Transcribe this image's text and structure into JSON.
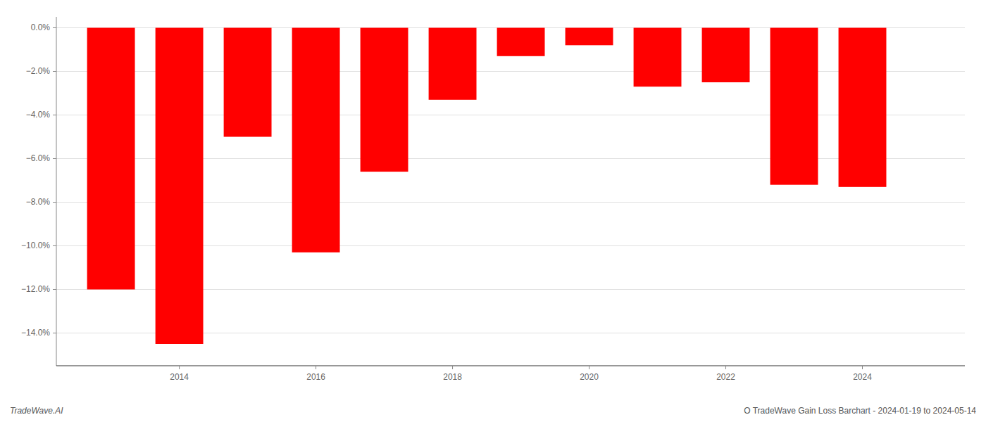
{
  "chart_data": {
    "type": "bar",
    "x": [
      2013,
      2014,
      2015,
      2016,
      2017,
      2018,
      2019,
      2020,
      2021,
      2022,
      2023,
      2024
    ],
    "values": [
      -0.12,
      -0.145,
      -0.05,
      -0.103,
      -0.066,
      -0.033,
      -0.013,
      -0.008,
      -0.027,
      -0.025,
      -0.072,
      -0.073
    ],
    "color": "#ff0000",
    "xlim": [
      2012.2,
      2025.5
    ],
    "xticks": [
      2014,
      2016,
      2018,
      2020,
      2022,
      2024
    ],
    "ylim": [
      -0.155,
      0.005
    ],
    "yticks": [
      {
        "value": 0.0,
        "label": "0.0%"
      },
      {
        "value": -0.02,
        "label": "−2.0%"
      },
      {
        "value": -0.04,
        "label": "−4.0%"
      },
      {
        "value": -0.06,
        "label": "−6.0%"
      },
      {
        "value": -0.08,
        "label": "−8.0%"
      },
      {
        "value": -0.1,
        "label": "−10.0%"
      },
      {
        "value": -0.12,
        "label": "−12.0%"
      },
      {
        "value": -0.14,
        "label": "−14.0%"
      }
    ],
    "grid": true,
    "annotations": [
      "TradeWave.AI",
      "O TradeWave Gain Loss Barchart - 2024-01-19 to 2024-05-14"
    ]
  }
}
